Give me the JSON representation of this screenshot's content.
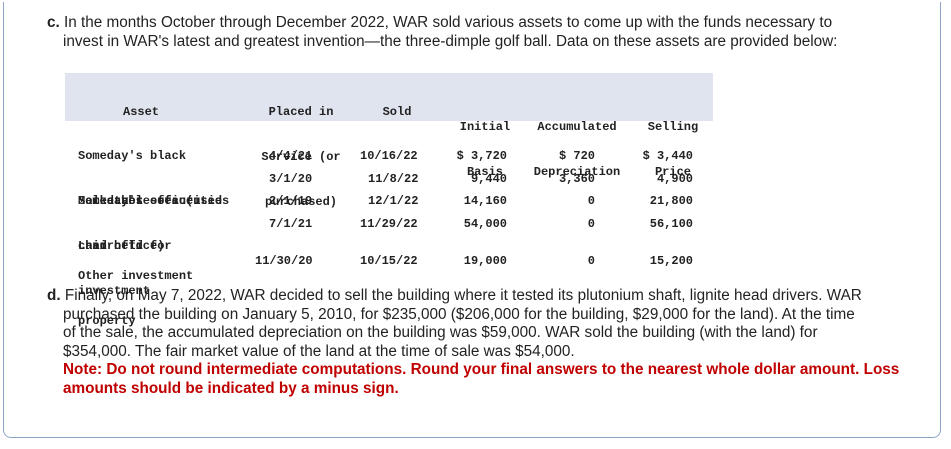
{
  "part_c": {
    "label": "c.",
    "line1": "In the months October through December 2022, WAR sold various assets to come up with the funds necessary to",
    "line2": "invest in WAR's latest and greatest invention—the three-dimple golf ball. Data on these assets are provided below:"
  },
  "table": {
    "headers": {
      "asset": "Asset",
      "placed_1": "Placed in",
      "placed_2": "Service (or",
      "placed_3": "purchased)",
      "sold": "Sold",
      "initial_1": "Initial",
      "initial_2": "Basis",
      "accum_1": "Accumulated",
      "accum_2": "Depreciation",
      "selling_1": "Selling",
      "selling_2": "Price"
    },
    "rows": [
      {
        "asset_lines": [
          "Someday's black",
          "  leather sofa (used",
          "  in office)"
        ],
        "placed": "4/4/21",
        "sold": "10/16/22",
        "basis": "$ 3,720",
        "depreciation": "$ 720",
        "price": "$ 3,440"
      },
      {
        "asset_lines": [
          "Someday's office",
          "chair"
        ],
        "placed": "3/1/20",
        "sold": "11/8/22",
        "basis": "9,440",
        "depreciation": "3,360",
        "price": "4,900"
      },
      {
        "asset_lines": [
          "Marketable securities"
        ],
        "placed": "2/1/19",
        "sold": "12/1/22",
        "basis": "14,160",
        "depreciation": "0",
        "price": "21,800"
      },
      {
        "asset_lines": [
          "Land held for",
          "investment"
        ],
        "placed": "7/1/21",
        "sold": "11/29/22",
        "basis": "54,000",
        "depreciation": "0",
        "price": "56,100"
      },
      {
        "asset_lines": [
          "Other investment",
          "property"
        ],
        "placed": "11/30/20",
        "sold": "10/15/22",
        "basis": "19,000",
        "depreciation": "0",
        "price": "15,200"
      }
    ]
  },
  "part_d": {
    "label": "d.",
    "line1": "Finally, on May 7, 2022, WAR decided to sell the building where it tested its plutonium shaft, lignite head drivers. WAR",
    "line2": "purchased the building on January 5, 2010, for $235,000 ($206,000 for the building, $29,000 for the land). At the time",
    "line3": "of the sale, the accumulated depreciation on the building was $59,000. WAR sold the building (with the land) for",
    "line4": "$354,000. The fair market value of the land at the time of sale was $54,000.",
    "note1": "Note: Do not round intermediate computations. Round your final answers to the nearest whole dollar amount. Loss",
    "note2": "amounts should be indicated by a minus sign."
  }
}
